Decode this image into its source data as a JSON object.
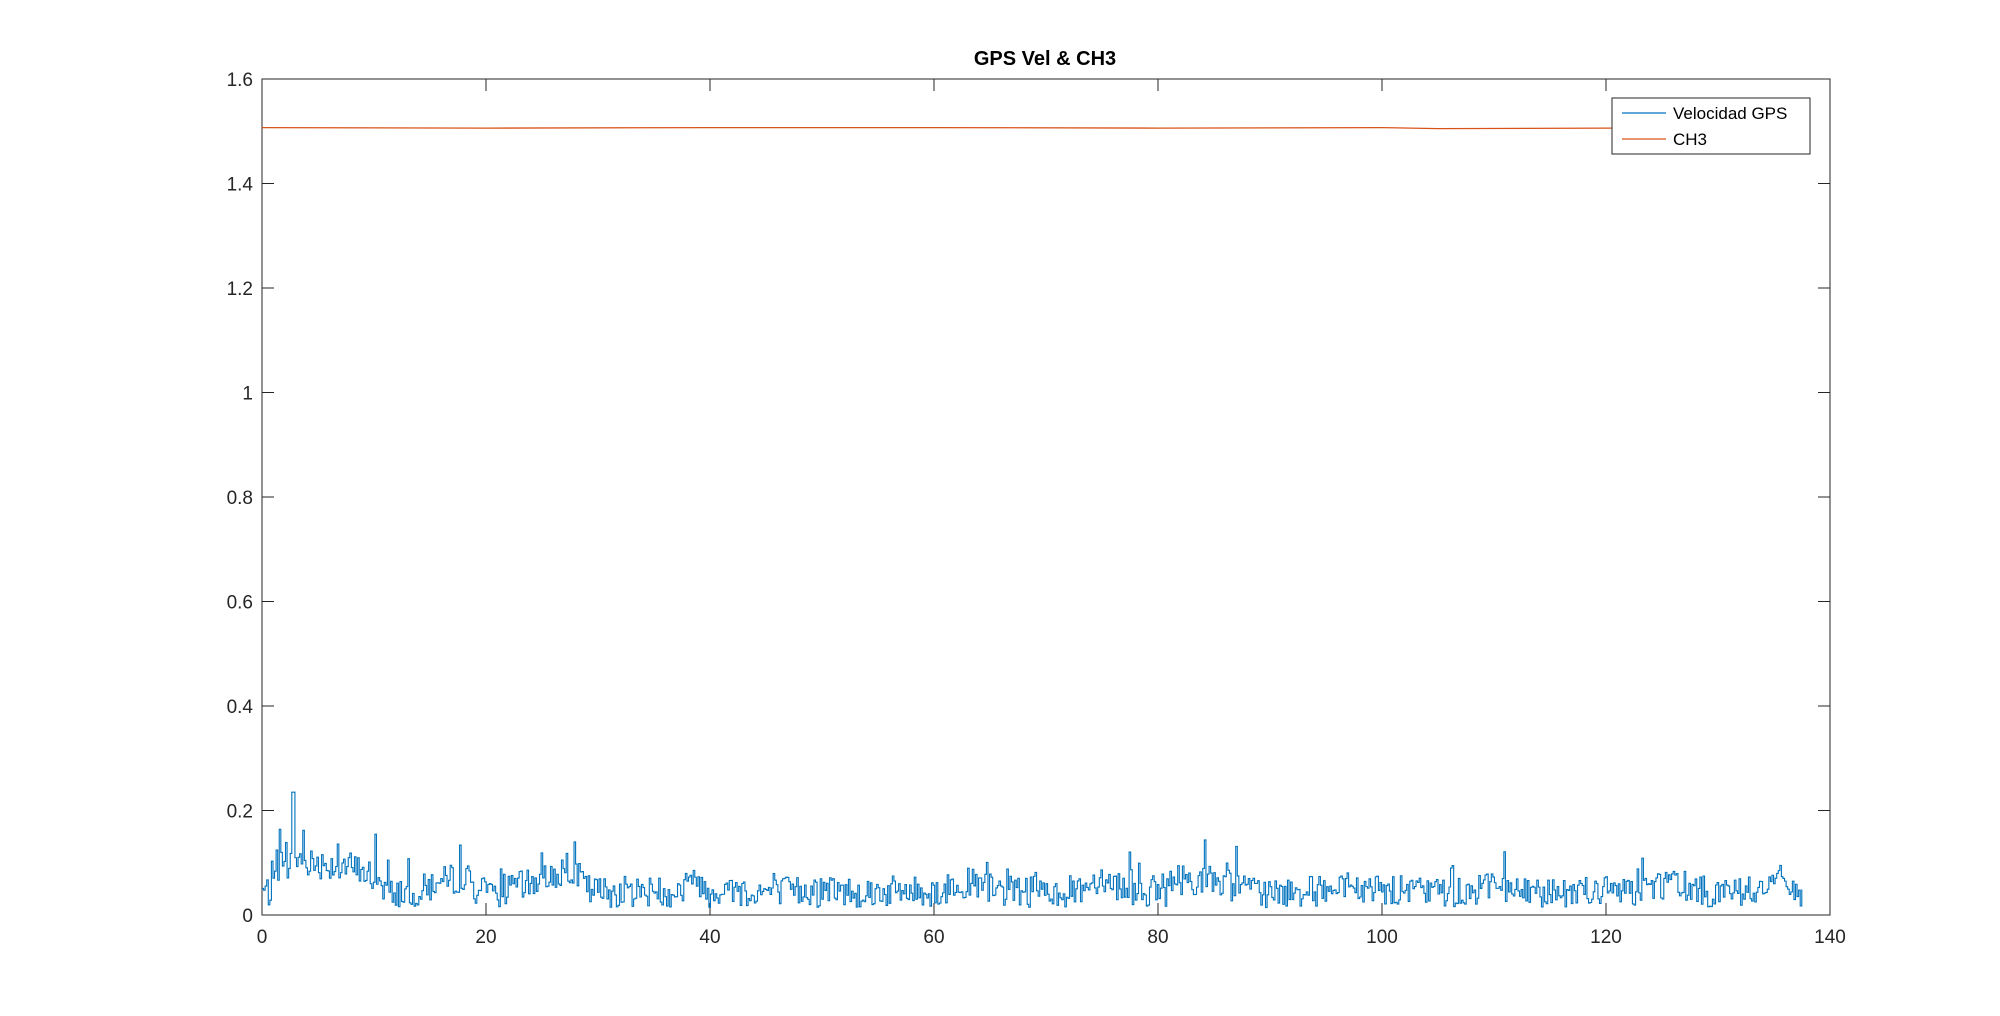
{
  "chart_data": {
    "type": "line",
    "title": "GPS Vel & CH3",
    "xlabel": "",
    "ylabel": "",
    "xlim": [
      0,
      140
    ],
    "ylim": [
      0,
      1.6
    ],
    "xticks": [
      0,
      20,
      40,
      60,
      80,
      100,
      120,
      140
    ],
    "yticks": [
      0,
      0.2,
      0.4,
      0.6,
      0.8,
      1,
      1.2,
      1.4,
      1.6
    ],
    "xtick_labels": [
      "0",
      "20",
      "40",
      "60",
      "80",
      "100",
      "120",
      "140"
    ],
    "ytick_labels": [
      "0",
      "0.2",
      "0.4",
      "0.6",
      "0.8",
      "1",
      "1.2",
      "1.4",
      "1.6"
    ],
    "grid": false,
    "legend_position": "top-right",
    "series": [
      {
        "name": "Velocidad GPS",
        "color": "#0072BD",
        "x_range": [
          0,
          137.5
        ],
        "x": [
          0,
          2.7,
          7.8,
          10,
          12,
          18,
          20,
          27.5,
          30,
          35,
          39,
          40,
          47,
          50,
          55,
          60,
          62,
          70,
          75,
          80,
          81.5,
          86,
          90,
          91,
          95,
          100,
          105,
          110,
          113.5,
          115,
          120,
          126,
          130,
          136,
          137.5
        ],
        "y": [
          0.055,
          0.235,
          0.205,
          0.16,
          0.07,
          0.17,
          0.065,
          0.2,
          0.06,
          0.055,
          0.145,
          0.06,
          0.06,
          0.03,
          0.055,
          0.06,
          0.145,
          0.055,
          0.155,
          0.065,
          0.155,
          0.14,
          0.03,
          0.01,
          0.06,
          0.06,
          0.055,
          0.135,
          0.005,
          0.065,
          0.07,
          0.145,
          0.075,
          0.15,
          0.045
        ]
      },
      {
        "name": "CH3",
        "color": "#D95319",
        "x": [
          0,
          20,
          40,
          60,
          80,
          100,
          105,
          120,
          137.5
        ],
        "y": [
          1.507,
          1.506,
          1.507,
          1.507,
          1.506,
          1.507,
          1.505,
          1.506,
          1.507
        ]
      }
    ]
  }
}
